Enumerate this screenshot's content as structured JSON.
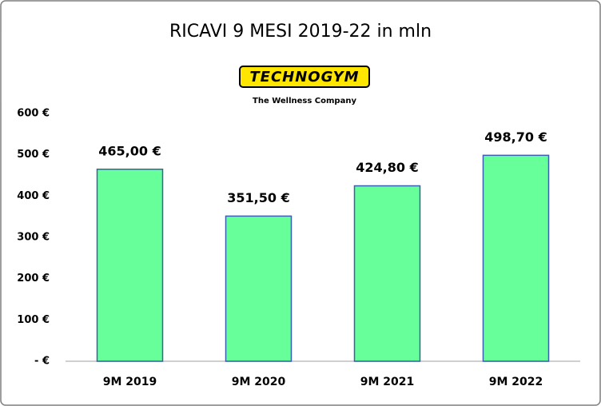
{
  "chart_data": {
    "type": "bar",
    "title": "RICAVI 9 MESI 2019-22 in mln",
    "logo_text": "TECHNOGYM",
    "logo_tagline": "The Wellness Company",
    "categories": [
      "9M 2019",
      "9M 2020",
      "9M 2021",
      "9M 2022"
    ],
    "values": [
      465.0,
      351.5,
      424.8,
      498.7
    ],
    "value_labels": [
      "465,00 €",
      "351,50 €",
      "424,80 €",
      "498,70 €"
    ],
    "color": "#66ff99",
    "ylim": [
      0,
      600
    ],
    "yticks": [
      {
        "value": 0,
        "label": "- €"
      },
      {
        "value": 100,
        "label": "100 €"
      },
      {
        "value": 200,
        "label": "200 €"
      },
      {
        "value": 300,
        "label": "300 €"
      },
      {
        "value": 400,
        "label": "400 €"
      },
      {
        "value": 500,
        "label": "500 €"
      },
      {
        "value": 600,
        "label": "600 €"
      }
    ],
    "grid": false
  }
}
